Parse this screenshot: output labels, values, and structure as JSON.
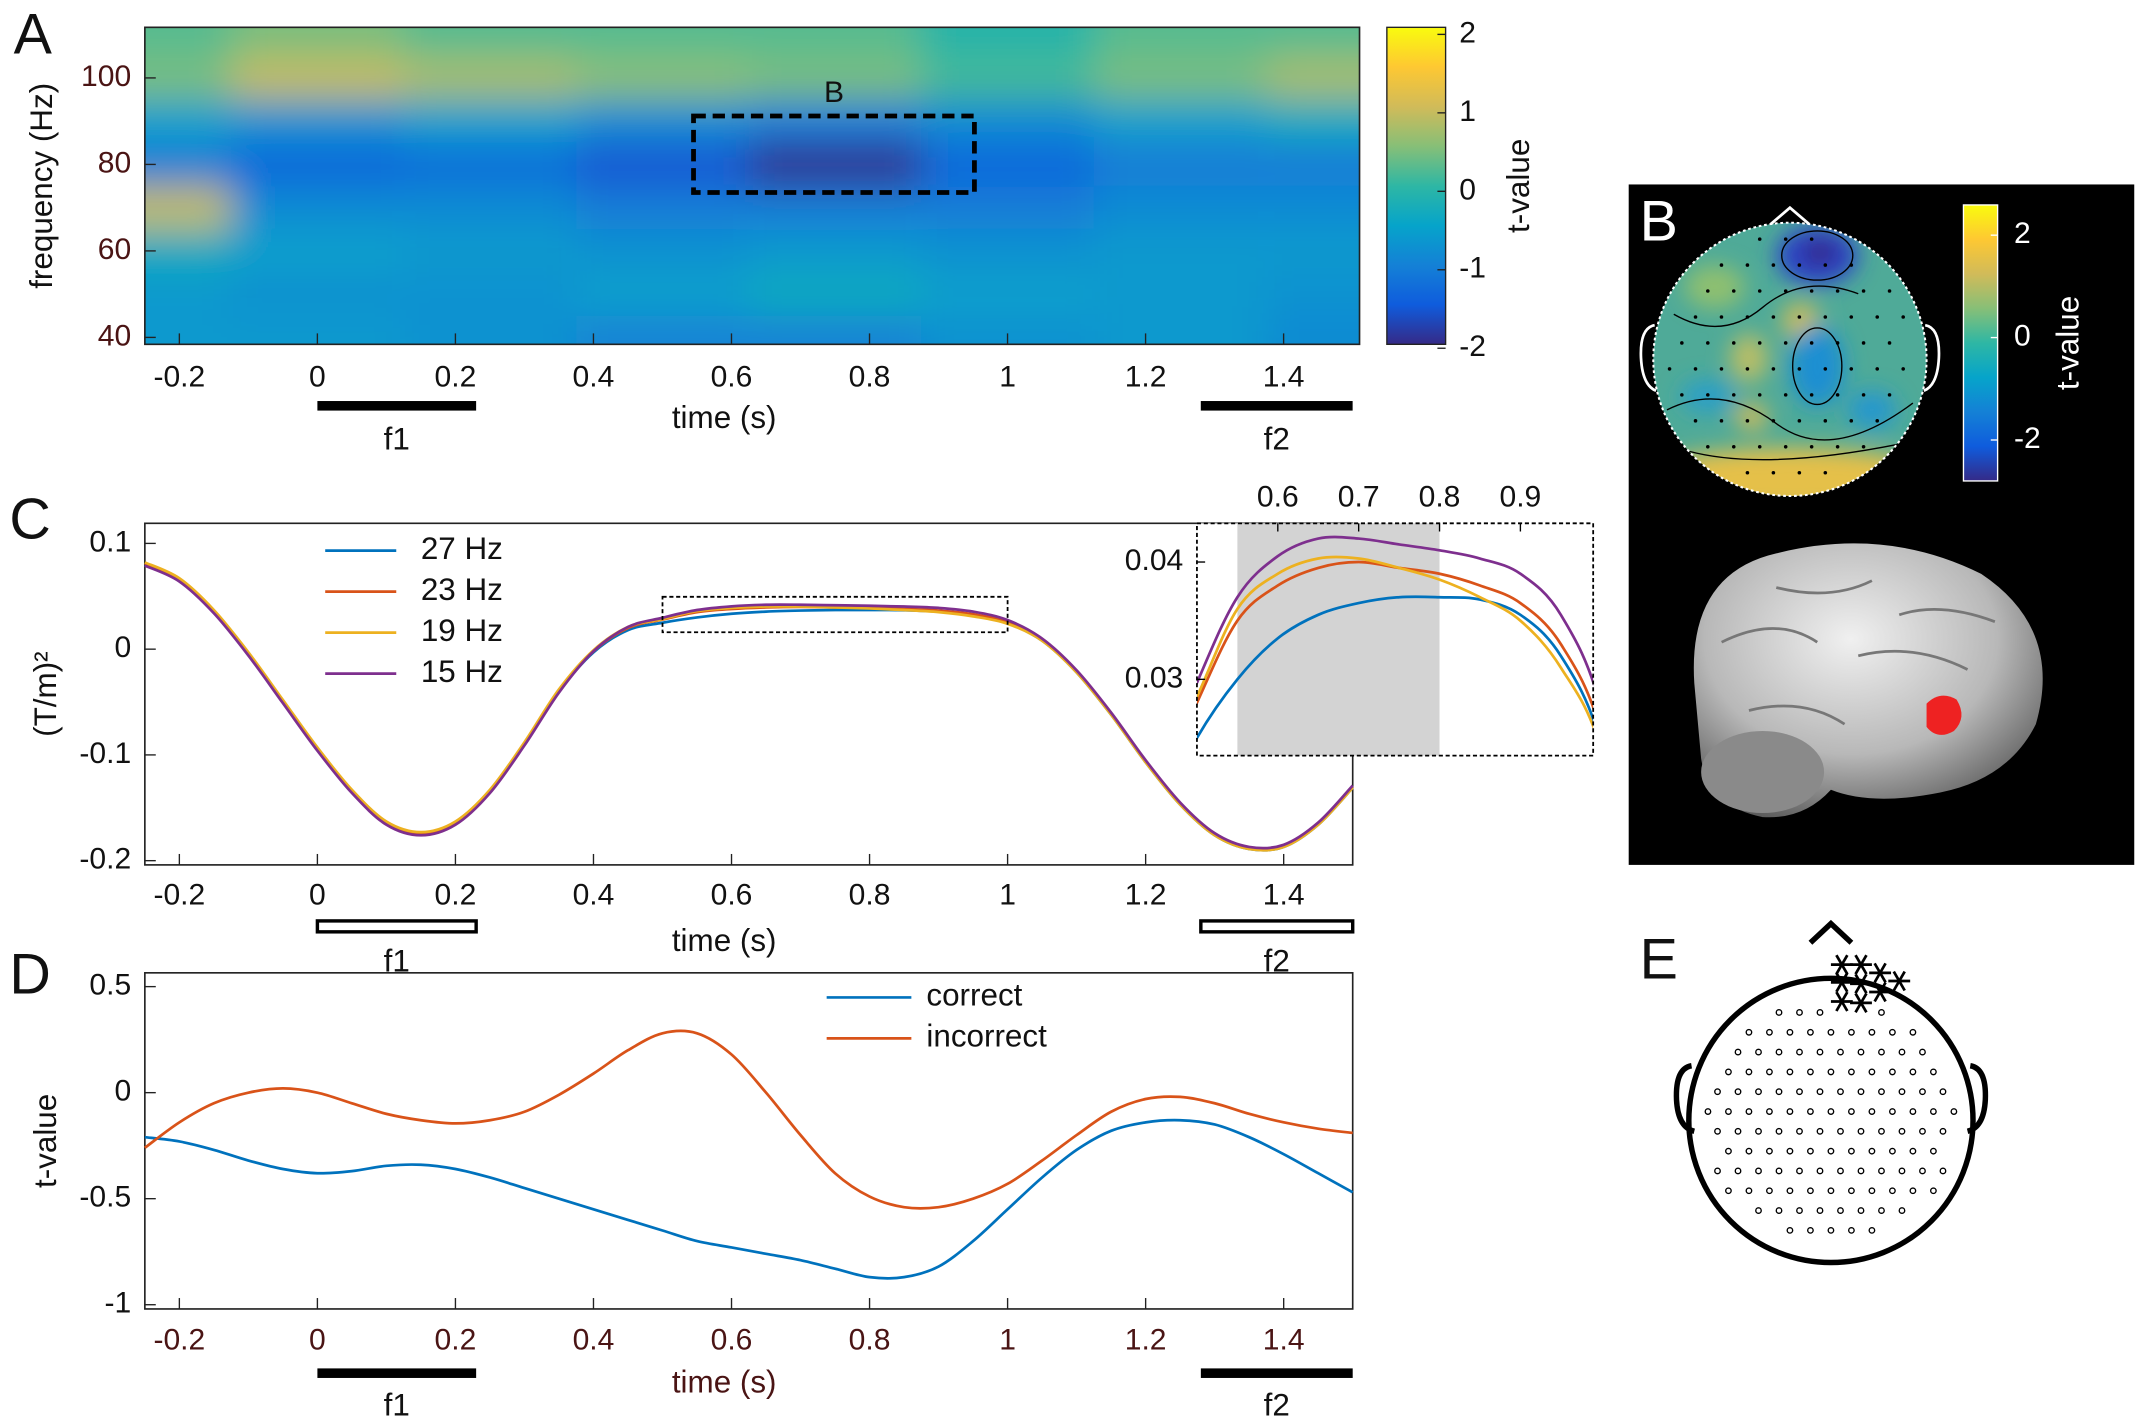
{
  "chart_data": [
    {
      "type": "heatmap",
      "panel_label": "A",
      "x": [
        -0.25,
        0,
        0.25,
        0.5,
        0.75,
        1,
        1.25,
        1.5
      ],
      "y": [
        40,
        50,
        60,
        70,
        80,
        90,
        100,
        110
      ],
      "z": [
        [
          -0.6,
          -0.6,
          -0.7,
          -0.9,
          -0.9,
          -0.7,
          -0.6,
          -0.8
        ],
        [
          -0.6,
          -0.7,
          -0.7,
          -0.5,
          -0.3,
          -0.5,
          -0.6,
          -0.7
        ],
        [
          -0.3,
          -0.5,
          -0.6,
          -0.7,
          -0.6,
          -0.7,
          -0.6,
          -0.6
        ],
        [
          1.0,
          -0.8,
          -0.8,
          -1.0,
          -1.0,
          -1.0,
          -0.8,
          -0.8
        ],
        [
          -1.0,
          -1.3,
          -1.2,
          -1.5,
          -1.9,
          -1.3,
          -1.0,
          -1.0
        ],
        [
          -0.5,
          -0.7,
          -0.5,
          -0.8,
          -1.0,
          -0.8,
          -0.5,
          -0.3
        ],
        [
          0.5,
          1.0,
          0.8,
          0.6,
          0.5,
          0.2,
          0.5,
          0.8
        ],
        [
          0.3,
          0.5,
          0.3,
          0.3,
          0.3,
          0.0,
          0.3,
          0.3
        ]
      ],
      "xlim": [
        -0.25,
        1.51
      ],
      "ylim": [
        38.4,
        111.7
      ],
      "xticks": [
        -0.2,
        0,
        0.2,
        0.4,
        0.6,
        0.8,
        1,
        1.2,
        1.4
      ],
      "yticks": [
        40,
        60,
        80,
        100
      ],
      "xlabel": "time (s)",
      "ylabel": "frequency (Hz)",
      "clim": [
        -1.95,
        2.09
      ],
      "colorbar_ticks": [
        2,
        1,
        0,
        -1,
        -2
      ],
      "colorbar_label": "t-value",
      "colormap": [
        "#352a87",
        "#0f5cdd",
        "#1481d6",
        "#06a4ca",
        "#2eb7a4",
        "#87bf77",
        "#d1bb59",
        "#fec832",
        "#f9fb0e"
      ],
      "box": {
        "label": "B",
        "x": [
          0.545,
          0.952
        ],
        "y": [
          73.5,
          91.2
        ]
      },
      "stimuli": [
        {
          "label": "f1",
          "start": 0,
          "end": 0.23
        },
        {
          "label": "f2",
          "start": 1.28,
          "end": 1.5
        }
      ]
    },
    {
      "type": "line",
      "panel_label": "C",
      "x": [
        -0.25,
        -0.2,
        -0.15,
        -0.1,
        -0.05,
        0,
        0.05,
        0.1,
        0.15,
        0.2,
        0.25,
        0.3,
        0.35,
        0.4,
        0.45,
        0.5,
        0.55,
        0.6,
        0.65,
        0.7,
        0.75,
        0.8,
        0.85,
        0.9,
        0.95,
        1,
        1.05,
        1.1,
        1.15,
        1.2,
        1.25,
        1.3,
        1.35,
        1.4,
        1.45,
        1.5
      ],
      "series": [
        {
          "name": "27 Hz",
          "color": "#0072bd",
          "values": [
            0.08,
            0.065,
            0.035,
            -0.005,
            -0.05,
            -0.095,
            -0.135,
            -0.165,
            -0.175,
            -0.165,
            -0.135,
            -0.09,
            -0.04,
            -0.003,
            0.018,
            0.025,
            0.03,
            0.0335,
            0.0355,
            0.0365,
            0.037,
            0.037,
            0.0368,
            0.0355,
            0.032,
            0.0245,
            0.008,
            -0.022,
            -0.062,
            -0.107,
            -0.147,
            -0.176,
            -0.189,
            -0.187,
            -0.166,
            -0.131
          ]
        },
        {
          "name": "23 Hz",
          "color": "#d95319",
          "values": [
            0.081,
            0.066,
            0.036,
            -0.004,
            -0.049,
            -0.094,
            -0.134,
            -0.164,
            -0.174,
            -0.164,
            -0.134,
            -0.089,
            -0.039,
            -0.002,
            0.02,
            0.028,
            0.035,
            0.038,
            0.0395,
            0.04,
            0.0395,
            0.039,
            0.038,
            0.0365,
            0.033,
            0.0255,
            0.009,
            -0.021,
            -0.061,
            -0.106,
            -0.146,
            -0.175,
            -0.188,
            -0.186,
            -0.165,
            -0.13
          ]
        },
        {
          "name": "19 Hz",
          "color": "#edb120",
          "values": [
            0.082,
            0.067,
            0.037,
            -0.003,
            -0.048,
            -0.093,
            -0.133,
            -0.163,
            -0.173,
            -0.163,
            -0.133,
            -0.088,
            -0.038,
            -0.001,
            0.021,
            0.0285,
            0.036,
            0.039,
            0.0403,
            0.0403,
            0.0395,
            0.0385,
            0.037,
            0.035,
            0.031,
            0.024,
            0.008,
            -0.022,
            -0.062,
            -0.107,
            -0.147,
            -0.176,
            -0.189,
            -0.187,
            -0.166,
            -0.131
          ]
        },
        {
          "name": "15 Hz",
          "color": "#7e2f8e",
          "values": [
            0.079,
            0.064,
            0.034,
            -0.006,
            -0.051,
            -0.096,
            -0.136,
            -0.166,
            -0.176,
            -0.166,
            -0.136,
            -0.091,
            -0.041,
            -0.002,
            0.021,
            0.0297,
            0.037,
            0.0405,
            0.042,
            0.042,
            0.0415,
            0.041,
            0.0403,
            0.039,
            0.0355,
            0.0275,
            0.01,
            -0.02,
            -0.06,
            -0.105,
            -0.145,
            -0.174,
            -0.187,
            -0.185,
            -0.164,
            -0.129
          ]
        }
      ],
      "xlim": [
        -0.25,
        1.5
      ],
      "ylim": [
        -0.204,
        0.119
      ],
      "xticks": [
        -0.2,
        0,
        0.2,
        0.4,
        0.6,
        0.8,
        1,
        1.2,
        1.4
      ],
      "yticks": [
        -0.2,
        -0.1,
        0,
        0.1
      ],
      "xlabel": "time (s)",
      "ylabel": "(T/m)²",
      "zoom_box": {
        "x": [
          0.5,
          1.0
        ],
        "y": [
          0.016,
          0.0495
        ]
      },
      "inset": {
        "xlim": [
          0.5,
          0.99
        ],
        "ylim": [
          0.0235,
          0.0433
        ],
        "xticks": [
          0.6,
          0.7,
          0.8,
          0.9
        ],
        "yticks": [
          0.03,
          0.04
        ],
        "shaded": [
          0.55,
          0.8
        ]
      },
      "stimuli": [
        {
          "label": "f1",
          "start": 0,
          "end": 0.23
        },
        {
          "label": "f2",
          "start": 1.28,
          "end": 1.5
        }
      ]
    },
    {
      "type": "line",
      "panel_label": "D",
      "x": [
        -0.25,
        -0.2,
        -0.15,
        -0.1,
        -0.05,
        0,
        0.05,
        0.1,
        0.15,
        0.2,
        0.25,
        0.3,
        0.35,
        0.4,
        0.45,
        0.5,
        0.55,
        0.6,
        0.65,
        0.7,
        0.75,
        0.8,
        0.85,
        0.9,
        0.95,
        1,
        1.05,
        1.1,
        1.15,
        1.2,
        1.25,
        1.3,
        1.35,
        1.4,
        1.45,
        1.5
      ],
      "series": [
        {
          "name": "correct",
          "color": "#0072bd",
          "values": [
            -0.21,
            -0.23,
            -0.27,
            -0.32,
            -0.36,
            -0.38,
            -0.37,
            -0.345,
            -0.34,
            -0.36,
            -0.4,
            -0.45,
            -0.5,
            -0.55,
            -0.6,
            -0.65,
            -0.7,
            -0.73,
            -0.76,
            -0.79,
            -0.83,
            -0.87,
            -0.87,
            -0.82,
            -0.7,
            -0.55,
            -0.4,
            -0.27,
            -0.18,
            -0.14,
            -0.13,
            -0.15,
            -0.21,
            -0.29,
            -0.38,
            -0.47
          ]
        },
        {
          "name": "incorrect",
          "color": "#d95319",
          "values": [
            -0.26,
            -0.14,
            -0.05,
            0.0,
            0.02,
            0.0,
            -0.05,
            -0.1,
            -0.13,
            -0.145,
            -0.13,
            -0.09,
            -0.01,
            0.09,
            0.2,
            0.28,
            0.28,
            0.18,
            0.0,
            -0.2,
            -0.38,
            -0.49,
            -0.54,
            -0.54,
            -0.5,
            -0.43,
            -0.32,
            -0.2,
            -0.09,
            -0.03,
            -0.02,
            -0.05,
            -0.1,
            -0.14,
            -0.17,
            -0.19
          ]
        }
      ],
      "xlim": [
        -0.25,
        1.5
      ],
      "ylim": [
        -1.02,
        0.565
      ],
      "xticks": [
        -0.2,
        0,
        0.2,
        0.4,
        0.6,
        0.8,
        1,
        1.2,
        1.4
      ],
      "yticks": [
        -1,
        -0.5,
        0,
        0.5
      ],
      "xlabel": "time (s)",
      "ylabel": "t-value",
      "stimuli": [
        {
          "label": "f1",
          "start": 0,
          "end": 0.23
        },
        {
          "label": "f2",
          "start": 1.28,
          "end": 1.5
        }
      ]
    }
  ],
  "topomap": {
    "panel_label": "B",
    "colorbar_ticks": [
      2,
      0,
      -2
    ],
    "colorbar_label": "t-value",
    "clim": [
      -2.8,
      2.59
    ]
  },
  "electrode_map": {
    "panel_label": "E"
  }
}
